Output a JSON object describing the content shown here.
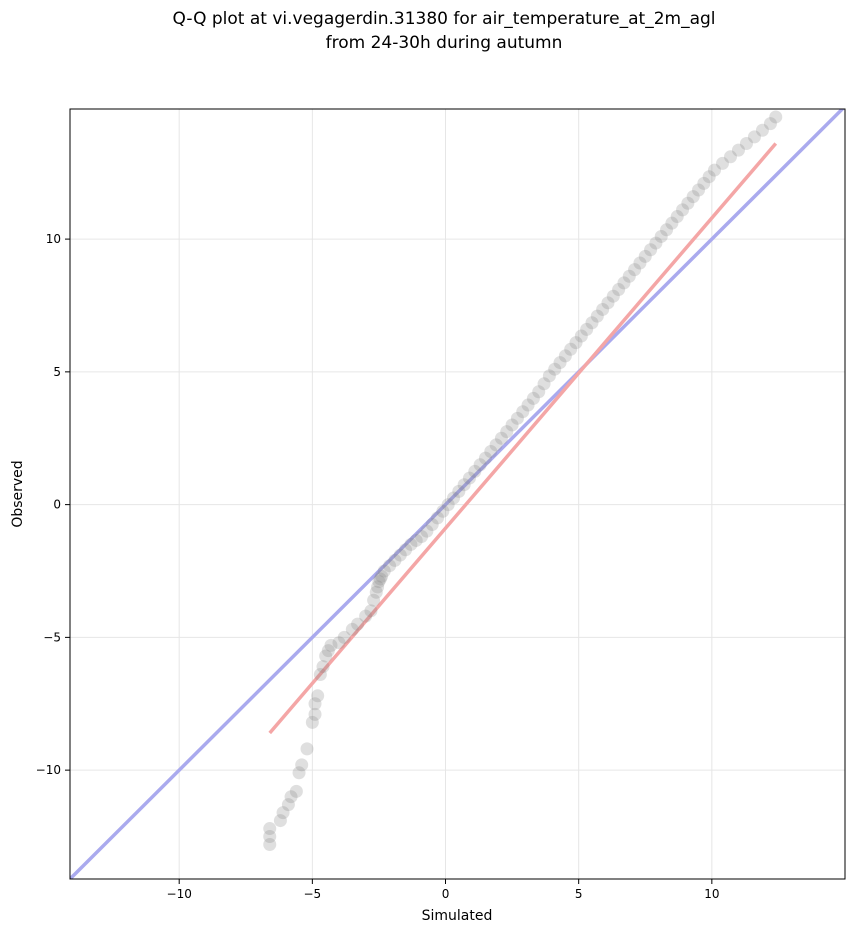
{
  "chart_data": {
    "type": "scatter",
    "title_lines": [
      "Q-Q plot at vi.vegagerdin.31380 for air_temperature_at_2m_agl",
      "from 24-30h during autumn"
    ],
    "xlabel": "Simulated",
    "ylabel": "Observed",
    "xlim": [
      -14.1,
      15.0
    ],
    "ylim": [
      -14.1,
      14.9
    ],
    "xticks": [
      -10,
      -5,
      0,
      5,
      10
    ],
    "yticks": [
      -10,
      -5,
      0,
      5,
      10
    ],
    "xtick_labels": [
      "−10",
      "−5",
      "0",
      "5",
      "10"
    ],
    "ytick_labels": [
      "−10",
      "−5",
      "0",
      "5",
      "10"
    ],
    "grid": true,
    "reference_line": {
      "slope": 1,
      "intercept": 0,
      "color": "#aaaaee"
    },
    "fit_line": {
      "x": [
        -6.6,
        12.4
      ],
      "y": [
        -8.6,
        13.6
      ],
      "color": "#f4a6a6"
    },
    "marker_color": "#808080",
    "points": {
      "x": [
        -6.6,
        -6.6,
        -6.6,
        -6.2,
        -6.1,
        -5.9,
        -5.8,
        -5.6,
        -5.5,
        -5.4,
        -5.2,
        -5.0,
        -4.9,
        -4.9,
        -4.8,
        -4.7,
        -4.6,
        -4.5,
        -4.4,
        -4.3,
        -4.0,
        -3.8,
        -3.5,
        -3.3,
        -3.0,
        -2.8,
        -2.7,
        -2.6,
        -2.55,
        -2.5,
        -2.45,
        -2.4,
        -2.3,
        -2.1,
        -1.9,
        -1.7,
        -1.5,
        -1.3,
        -1.1,
        -0.9,
        -0.7,
        -0.5,
        -0.3,
        -0.1,
        0.1,
        0.3,
        0.5,
        0.7,
        0.9,
        1.1,
        1.3,
        1.5,
        1.7,
        1.9,
        2.1,
        2.3,
        2.5,
        2.7,
        2.9,
        3.1,
        3.3,
        3.5,
        3.7,
        3.9,
        4.1,
        4.3,
        4.5,
        4.7,
        4.9,
        5.1,
        5.3,
        5.5,
        5.7,
        5.9,
        6.1,
        6.3,
        6.5,
        6.7,
        6.9,
        7.1,
        7.3,
        7.5,
        7.7,
        7.9,
        8.1,
        8.3,
        8.5,
        8.7,
        8.9,
        9.1,
        9.3,
        9.5,
        9.7,
        9.9,
        10.1,
        10.4,
        10.7,
        11.0,
        11.3,
        11.6,
        11.9,
        12.2,
        12.4
      ],
      "y": [
        -12.8,
        -12.5,
        -12.2,
        -11.9,
        -11.6,
        -11.3,
        -11.0,
        -10.8,
        -10.1,
        -9.8,
        -9.2,
        -8.2,
        -7.9,
        -7.5,
        -7.2,
        -6.4,
        -6.1,
        -5.7,
        -5.5,
        -5.3,
        -5.2,
        -5.0,
        -4.7,
        -4.5,
        -4.2,
        -4.0,
        -3.6,
        -3.3,
        -3.1,
        -2.9,
        -2.8,
        -2.7,
        -2.5,
        -2.3,
        -2.1,
        -1.9,
        -1.7,
        -1.5,
        -1.35,
        -1.2,
        -1.0,
        -0.75,
        -0.5,
        -0.25,
        0.0,
        0.25,
        0.5,
        0.75,
        1.0,
        1.25,
        1.5,
        1.75,
        2.0,
        2.25,
        2.5,
        2.75,
        3.0,
        3.25,
        3.5,
        3.75,
        4.0,
        4.25,
        4.55,
        4.85,
        5.1,
        5.35,
        5.6,
        5.85,
        6.1,
        6.35,
        6.6,
        6.85,
        7.1,
        7.35,
        7.6,
        7.85,
        8.1,
        8.35,
        8.6,
        8.85,
        9.1,
        9.35,
        9.6,
        9.85,
        10.1,
        10.35,
        10.6,
        10.85,
        11.1,
        11.35,
        11.6,
        11.85,
        12.1,
        12.35,
        12.6,
        12.85,
        13.1,
        13.35,
        13.6,
        13.85,
        14.1,
        14.35,
        14.6
      ]
    }
  }
}
